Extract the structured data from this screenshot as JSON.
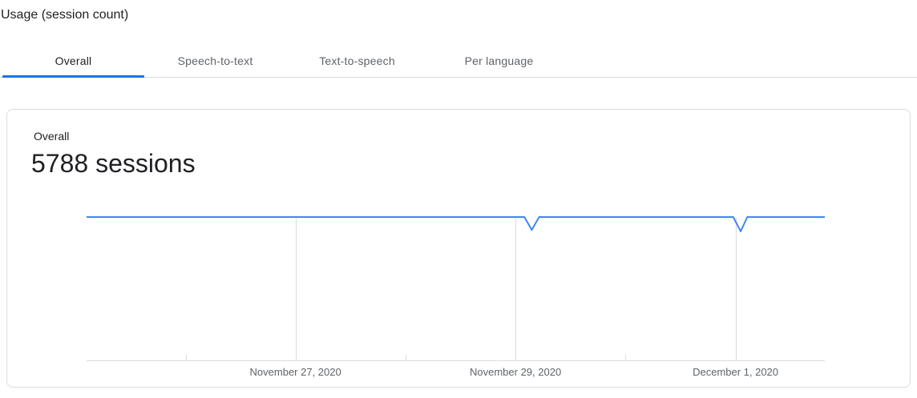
{
  "header": {
    "title": "Usage (session count)"
  },
  "tabs": {
    "items": [
      {
        "label": "Overall",
        "active": true
      },
      {
        "label": "Speech-to-text",
        "active": false
      },
      {
        "label": "Text-to-speech",
        "active": false
      },
      {
        "label": "Per language",
        "active": false
      }
    ]
  },
  "card": {
    "metric_label": "Overall",
    "metric_value": "5788 sessions"
  },
  "colors": {
    "accent_blue": "#1a73e8",
    "chart_line_blue": "#4285f4",
    "gridline_gray": "#dadce0",
    "card_border": "#dadce0",
    "text_primary": "#202124",
    "text_secondary": "#5f6368"
  },
  "chart_data": {
    "type": "line",
    "title": "Overall",
    "total_sessions": 5788,
    "total_label": "5788 sessions",
    "xlabel": "",
    "ylabel": "",
    "legend": "none",
    "grid": "vertical-major-gridlines-with-minor-ticks",
    "y_axis_visible": false,
    "x_ticks": [
      {
        "label": "November 27, 2020",
        "pos": 0.283
      },
      {
        "label": "November 29, 2020",
        "pos": 0.581
      },
      {
        "label": "December 1, 2020",
        "pos": 0.879
      }
    ],
    "minor_tick_positions": [
      0.135,
      0.432,
      0.73
    ],
    "series": [
      {
        "name": "sessions",
        "description": "flat maximum rate with two brief dips shortly after Nov 29 and around Dec 1",
        "points": [
          [
            0.0,
            1.0
          ],
          [
            0.593,
            1.0
          ],
          [
            0.603,
            0.91
          ],
          [
            0.613,
            1.0
          ],
          [
            0.876,
            1.0
          ],
          [
            0.886,
            0.9
          ],
          [
            0.895,
            1.0
          ],
          [
            1.0,
            1.0
          ]
        ],
        "ylim": [
          0,
          1
        ]
      }
    ]
  }
}
